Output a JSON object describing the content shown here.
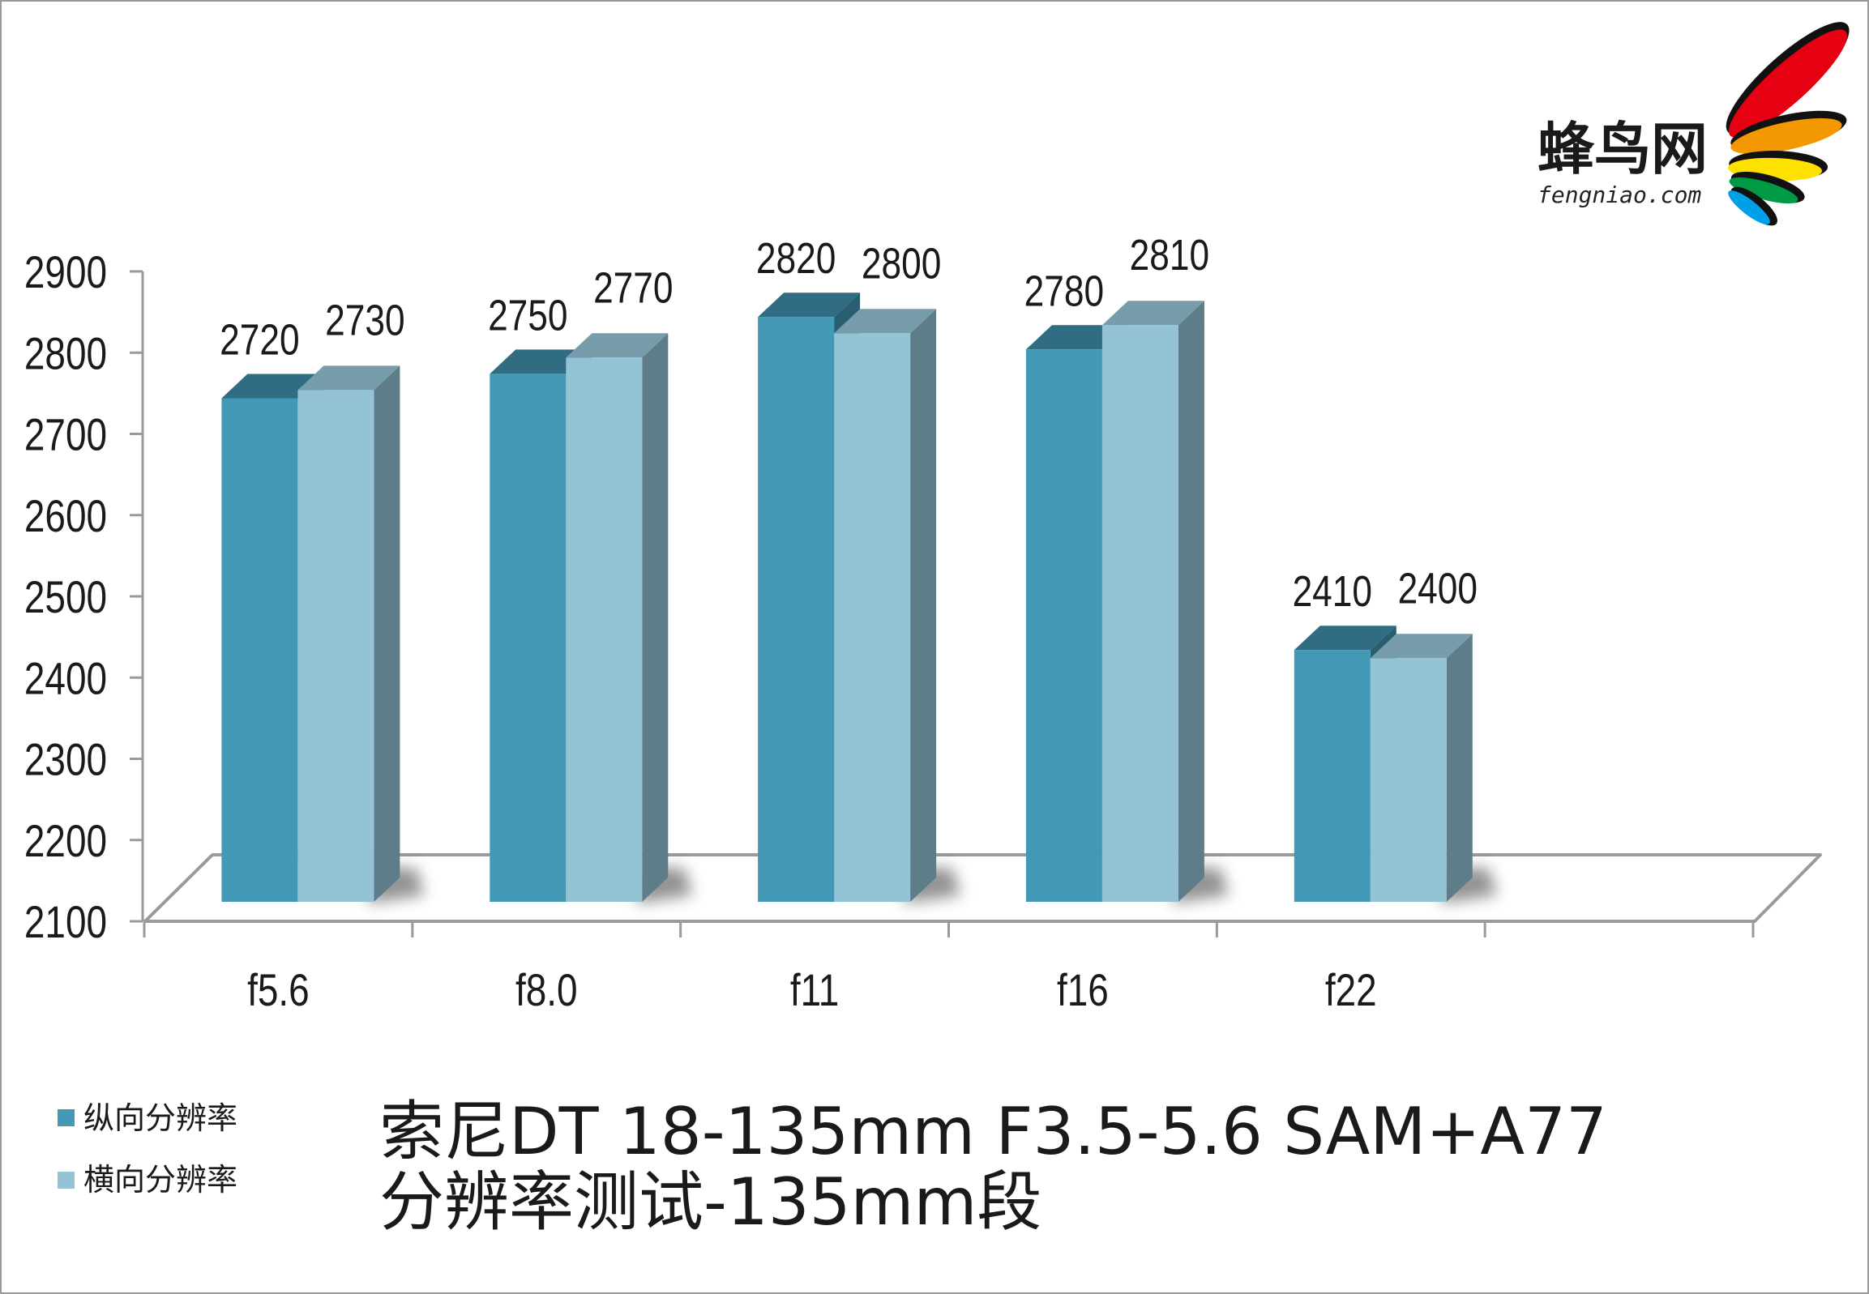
{
  "chart_data": {
    "type": "bar",
    "style": "3d-column",
    "title_lines": [
      "索尼DT 18-135mm F3.5-5.6 SAM+A77",
      "分辨率测试-135mm段"
    ],
    "categories": [
      "f5.6",
      "f8.0",
      "f11",
      "f16",
      "f22"
    ],
    "series": [
      {
        "name": "纵向分辨率",
        "values": [
          2720,
          2750,
          2820,
          2780,
          2410
        ],
        "color": "#4298b5"
      },
      {
        "name": "横向分辨率",
        "values": [
          2730,
          2770,
          2800,
          2810,
          2400
        ],
        "color": "#95c3d6"
      }
    ],
    "ylim": [
      2100,
      2900
    ],
    "y_ticks": [
      2100,
      2200,
      2300,
      2400,
      2500,
      2600,
      2700,
      2800,
      2900
    ],
    "grid": false,
    "data_labels": true,
    "legend_placement": "bottom-left"
  },
  "logo": {
    "name": "蜂鸟网",
    "domain_text": "fengniao.com",
    "colors": [
      "#e60012",
      "#f39800",
      "#ffe100",
      "#009944",
      "#00a0e9"
    ]
  }
}
